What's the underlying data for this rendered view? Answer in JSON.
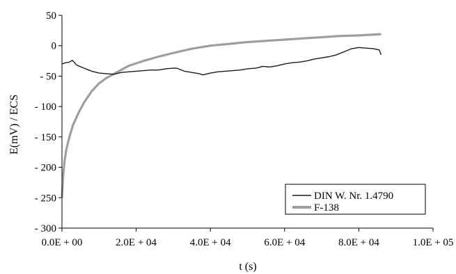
{
  "chart_data": {
    "type": "line",
    "title": "",
    "xlabel": "t (s)",
    "ylabel": "E(mV) / ECS",
    "xlim": [
      0,
      100000
    ],
    "ylim": [
      -300,
      50
    ],
    "x_ticks": [
      0,
      20000,
      40000,
      60000,
      80000,
      100000
    ],
    "x_tick_labels": [
      "0.0E + 00",
      "2.0E + 04",
      "4.0E + 04",
      "6.0E + 04",
      "8.0E + 04",
      "1.0E + 05"
    ],
    "y_ticks": [
      50,
      0,
      -50,
      -100,
      -150,
      -200,
      -250,
      -300
    ],
    "y_tick_labels": [
      "50",
      "0",
      "- 50",
      "- 100",
      "- 150",
      "- 200",
      "- 250",
      "- 300"
    ],
    "grid": false,
    "legend_position": "bottom-right",
    "series": [
      {
        "name": "DIN W. Nr. 1.4790",
        "color": "#1a1a1a",
        "x": [
          0,
          1000,
          2000,
          2800,
          4000,
          6000,
          8000,
          10000,
          12000,
          14000,
          16000,
          18000,
          20000,
          22000,
          24000,
          26000,
          28000,
          30000,
          31000,
          33000,
          35000,
          37000,
          38000,
          40000,
          42000,
          44000,
          46000,
          48000,
          50000,
          52000,
          53000,
          54000,
          56000,
          58000,
          60000,
          62000,
          64000,
          66000,
          68000,
          70000,
          72000,
          74000,
          76000,
          78000,
          80000,
          82000,
          84000,
          85500,
          86000
        ],
        "y": [
          -30,
          -28,
          -27,
          -24,
          -32,
          -37,
          -42,
          -45,
          -46,
          -47,
          -44,
          -43,
          -42,
          -41,
          -40,
          -40,
          -38,
          -37,
          -37,
          -42,
          -44,
          -46,
          -48,
          -45,
          -43,
          -42,
          -41,
          -40,
          -38,
          -37,
          -36,
          -34,
          -35,
          -33,
          -30,
          -28,
          -27,
          -25,
          -22,
          -20,
          -18,
          -15,
          -10,
          -5,
          -3,
          -4,
          -5,
          -7,
          -15
        ]
      },
      {
        "name": "F-138",
        "color": "#9e9e9e",
        "x": [
          0,
          300,
          700,
          1200,
          2000,
          3000,
          4500,
          6000,
          8000,
          10000,
          12000,
          15000,
          18000,
          22000,
          26000,
          30000,
          35000,
          40000,
          45000,
          50000,
          55000,
          60000,
          65000,
          70000,
          75000,
          80000,
          86000
        ],
        "y": [
          -250,
          -215,
          -190,
          -170,
          -150,
          -130,
          -110,
          -93,
          -75,
          -62,
          -53,
          -43,
          -33,
          -25,
          -18,
          -12,
          -5,
          0,
          3,
          6,
          8,
          10,
          12,
          14,
          16,
          17,
          19
        ]
      }
    ]
  }
}
